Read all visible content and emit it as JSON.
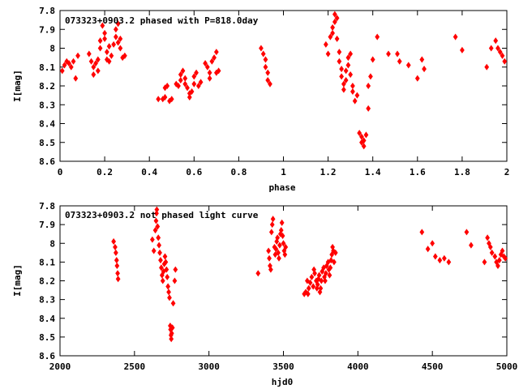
{
  "chart_data": [
    {
      "type": "scatter",
      "title": "073323+0903.2 phased with P=818.0day",
      "xlabel": "phase",
      "ylabel": "I[mag]",
      "xlim": [
        0,
        2
      ],
      "ylim": [
        7.8,
        8.6
      ],
      "y_inverted": true,
      "x_ticks": [
        0,
        0.2,
        0.4,
        0.6,
        0.8,
        1,
        1.2,
        1.4,
        1.6,
        1.8,
        2
      ],
      "y_ticks": [
        7.8,
        7.9,
        8,
        8.1,
        8.2,
        8.3,
        8.4,
        8.5,
        8.6
      ],
      "grid": false,
      "marker_color": "#ff0000",
      "marker_shape": "diamond",
      "points": [
        [
          0.01,
          8.12
        ],
        [
          0.02,
          8.09
        ],
        [
          0.03,
          8.07
        ],
        [
          0.04,
          8.08
        ],
        [
          0.05,
          8.1
        ],
        [
          0.06,
          8.07
        ],
        [
          0.07,
          8.16
        ],
        [
          0.08,
          8.04
        ],
        [
          0.13,
          8.03
        ],
        [
          0.14,
          8.07
        ],
        [
          0.15,
          8.1
        ],
        [
          0.15,
          8.14
        ],
        [
          0.16,
          8.08
        ],
        [
          0.17,
          8.06
        ],
        [
          0.17,
          8.12
        ],
        [
          0.18,
          8.0
        ],
        [
          0.18,
          7.96
        ],
        [
          0.19,
          7.88
        ],
        [
          0.2,
          7.92
        ],
        [
          0.2,
          7.95
        ],
        [
          0.21,
          8.02
        ],
        [
          0.21,
          8.06
        ],
        [
          0.22,
          7.99
        ],
        [
          0.22,
          8.07
        ],
        [
          0.23,
          8.04
        ],
        [
          0.24,
          7.98
        ],
        [
          0.25,
          7.94
        ],
        [
          0.25,
          7.9
        ],
        [
          0.26,
          7.87
        ],
        [
          0.26,
          7.97
        ],
        [
          0.27,
          7.95
        ],
        [
          0.27,
          8.0
        ],
        [
          0.28,
          8.05
        ],
        [
          0.29,
          8.04
        ],
        [
          0.44,
          8.27
        ],
        [
          0.46,
          8.27
        ],
        [
          0.47,
          8.26
        ],
        [
          0.47,
          8.21
        ],
        [
          0.48,
          8.2
        ],
        [
          0.49,
          8.28
        ],
        [
          0.5,
          8.27
        ],
        [
          0.52,
          8.19
        ],
        [
          0.53,
          8.2
        ],
        [
          0.54,
          8.17
        ],
        [
          0.54,
          8.14
        ],
        [
          0.55,
          8.12
        ],
        [
          0.56,
          8.16
        ],
        [
          0.56,
          8.19
        ],
        [
          0.57,
          8.21
        ],
        [
          0.58,
          8.24
        ],
        [
          0.58,
          8.26
        ],
        [
          0.59,
          8.23
        ],
        [
          0.6,
          8.19
        ],
        [
          0.6,
          8.15
        ],
        [
          0.61,
          8.13
        ],
        [
          0.62,
          8.2
        ],
        [
          0.63,
          8.18
        ],
        [
          0.65,
          8.08
        ],
        [
          0.66,
          8.1
        ],
        [
          0.67,
          8.13
        ],
        [
          0.67,
          8.16
        ],
        [
          0.68,
          8.07
        ],
        [
          0.69,
          8.05
        ],
        [
          0.7,
          8.02
        ],
        [
          0.7,
          8.13
        ],
        [
          0.71,
          8.12
        ],
        [
          0.9,
          8.0
        ],
        [
          0.91,
          8.03
        ],
        [
          0.92,
          8.06
        ],
        [
          0.92,
          8.1
        ],
        [
          0.93,
          8.13
        ],
        [
          0.93,
          8.17
        ],
        [
          0.94,
          8.19
        ],
        [
          1.19,
          7.98
        ],
        [
          1.2,
          8.03
        ],
        [
          1.21,
          7.94
        ],
        [
          1.22,
          7.92
        ],
        [
          1.22,
          7.89
        ],
        [
          1.23,
          7.86
        ],
        [
          1.23,
          7.82
        ],
        [
          1.24,
          7.84
        ],
        [
          1.24,
          7.95
        ],
        [
          1.25,
          8.02
        ],
        [
          1.25,
          8.07
        ],
        [
          1.26,
          8.11
        ],
        [
          1.26,
          8.15
        ],
        [
          1.27,
          8.19
        ],
        [
          1.27,
          8.22
        ],
        [
          1.28,
          8.17
        ],
        [
          1.28,
          8.12
        ],
        [
          1.29,
          8.09
        ],
        [
          1.29,
          8.05
        ],
        [
          1.3,
          8.03
        ],
        [
          1.3,
          8.14
        ],
        [
          1.31,
          8.2
        ],
        [
          1.31,
          8.23
        ],
        [
          1.32,
          8.28
        ],
        [
          1.33,
          8.25
        ],
        [
          1.34,
          8.45
        ],
        [
          1.35,
          8.47
        ],
        [
          1.35,
          8.5
        ],
        [
          1.36,
          8.52
        ],
        [
          1.36,
          8.49
        ],
        [
          1.37,
          8.46
        ],
        [
          1.38,
          8.32
        ],
        [
          1.38,
          8.2
        ],
        [
          1.39,
          8.15
        ],
        [
          1.4,
          8.06
        ],
        [
          1.42,
          7.94
        ],
        [
          1.47,
          8.03
        ],
        [
          1.51,
          8.03
        ],
        [
          1.52,
          8.07
        ],
        [
          1.56,
          8.09
        ],
        [
          1.62,
          8.06
        ],
        [
          1.6,
          8.16
        ],
        [
          1.63,
          8.11
        ],
        [
          1.77,
          7.94
        ],
        [
          1.8,
          8.01
        ],
        [
          1.91,
          8.1
        ],
        [
          1.93,
          8.0
        ],
        [
          1.95,
          7.96
        ],
        [
          1.96,
          8.0
        ],
        [
          1.97,
          8.02
        ],
        [
          1.98,
          8.04
        ],
        [
          1.99,
          8.07
        ]
      ]
    },
    {
      "type": "scatter",
      "title": "073323+0903.2 not phased light curve",
      "xlabel": "hjd0",
      "ylabel": "I[mag]",
      "xlim": [
        2000,
        5000
      ],
      "ylim": [
        7.8,
        8.6
      ],
      "y_inverted": true,
      "x_ticks": [
        2000,
        2500,
        3000,
        3500,
        4000,
        4500,
        5000
      ],
      "y_ticks": [
        7.8,
        7.9,
        8,
        8.1,
        8.2,
        8.3,
        8.4,
        8.5,
        8.6
      ],
      "grid": false,
      "marker_color": "#ff0000",
      "marker_shape": "diamond",
      "points": [
        [
          2360,
          7.99
        ],
        [
          2370,
          8.02
        ],
        [
          2375,
          8.05
        ],
        [
          2380,
          8.09
        ],
        [
          2383,
          8.12
        ],
        [
          2387,
          8.16
        ],
        [
          2390,
          8.19
        ],
        [
          2620,
          7.98
        ],
        [
          2630,
          8.04
        ],
        [
          2640,
          7.93
        ],
        [
          2645,
          7.88
        ],
        [
          2648,
          7.84
        ],
        [
          2650,
          7.82
        ],
        [
          2655,
          7.91
        ],
        [
          2660,
          7.97
        ],
        [
          2665,
          8.01
        ],
        [
          2670,
          8.05
        ],
        [
          2675,
          8.09
        ],
        [
          2680,
          8.13
        ],
        [
          2685,
          8.17
        ],
        [
          2690,
          8.2
        ],
        [
          2695,
          8.15
        ],
        [
          2700,
          8.11
        ],
        [
          2705,
          8.07
        ],
        [
          2710,
          8.1
        ],
        [
          2715,
          8.14
        ],
        [
          2720,
          8.18
        ],
        [
          2725,
          8.23
        ],
        [
          2730,
          8.26
        ],
        [
          2735,
          8.29
        ],
        [
          2740,
          8.44
        ],
        [
          2742,
          8.46
        ],
        [
          2745,
          8.49
        ],
        [
          2747,
          8.51
        ],
        [
          2750,
          8.48
        ],
        [
          2755,
          8.45
        ],
        [
          2760,
          8.32
        ],
        [
          2770,
          8.2
        ],
        [
          2775,
          8.14
        ],
        [
          3330,
          8.16
        ],
        [
          3400,
          8.04
        ],
        [
          3405,
          8.08
        ],
        [
          3410,
          8.12
        ],
        [
          3415,
          8.14
        ],
        [
          3420,
          7.94
        ],
        [
          3425,
          7.9
        ],
        [
          3430,
          7.87
        ],
        [
          3440,
          8.02
        ],
        [
          3445,
          8.06
        ],
        [
          3450,
          8.03
        ],
        [
          3455,
          7.99
        ],
        [
          3460,
          7.97
        ],
        [
          3465,
          8.05
        ],
        [
          3470,
          8.08
        ],
        [
          3475,
          8.01
        ],
        [
          3480,
          7.95
        ],
        [
          3485,
          7.93
        ],
        [
          3490,
          7.89
        ],
        [
          3495,
          7.96
        ],
        [
          3500,
          8.0
        ],
        [
          3505,
          8.04
        ],
        [
          3510,
          8.06
        ],
        [
          3515,
          8.02
        ],
        [
          3640,
          8.27
        ],
        [
          3650,
          8.26
        ],
        [
          3660,
          8.2
        ],
        [
          3665,
          8.27
        ],
        [
          3670,
          8.24
        ],
        [
          3680,
          8.21
        ],
        [
          3690,
          8.18
        ],
        [
          3700,
          8.23
        ],
        [
          3705,
          8.14
        ],
        [
          3710,
          8.16
        ],
        [
          3720,
          8.2
        ],
        [
          3725,
          8.24
        ],
        [
          3730,
          8.22
        ],
        [
          3735,
          8.19
        ],
        [
          3740,
          8.17
        ],
        [
          3745,
          8.26
        ],
        [
          3750,
          8.24
        ],
        [
          3755,
          8.2
        ],
        [
          3760,
          8.15
        ],
        [
          3770,
          8.13
        ],
        [
          3775,
          8.18
        ],
        [
          3780,
          8.2
        ],
        [
          3785,
          8.16
        ],
        [
          3790,
          8.12
        ],
        [
          3800,
          8.1
        ],
        [
          3805,
          8.14
        ],
        [
          3810,
          8.17
        ],
        [
          3815,
          8.13
        ],
        [
          3820,
          8.09
        ],
        [
          3825,
          8.06
        ],
        [
          3830,
          8.02
        ],
        [
          3835,
          8.04
        ],
        [
          3840,
          8.1
        ],
        [
          3850,
          8.05
        ],
        [
          4430,
          7.94
        ],
        [
          4470,
          8.03
        ],
        [
          4500,
          8.0
        ],
        [
          4520,
          8.07
        ],
        [
          4550,
          8.09
        ],
        [
          4580,
          8.08
        ],
        [
          4610,
          8.1
        ],
        [
          4730,
          7.94
        ],
        [
          4760,
          8.01
        ],
        [
          4850,
          8.1
        ],
        [
          4870,
          7.97
        ],
        [
          4880,
          8.0
        ],
        [
          4890,
          8.02
        ],
        [
          4900,
          8.05
        ],
        [
          4920,
          8.07
        ],
        [
          4930,
          8.1
        ],
        [
          4940,
          8.12
        ],
        [
          4950,
          8.09
        ],
        [
          4960,
          8.06
        ],
        [
          4970,
          8.04
        ],
        [
          4980,
          8.07
        ],
        [
          4990,
          8.08
        ]
      ]
    }
  ]
}
